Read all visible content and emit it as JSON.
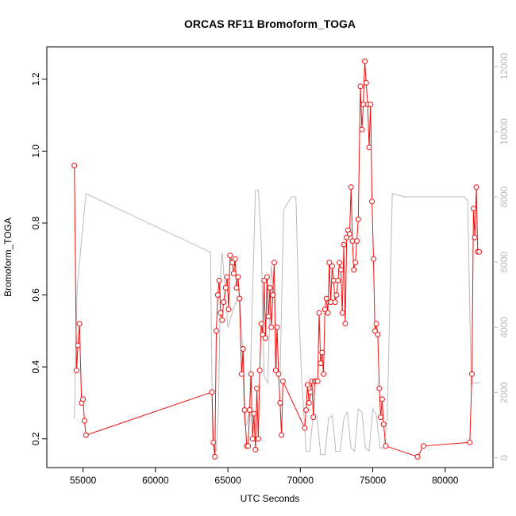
{
  "chart_data": {
    "type": "line",
    "title": "ORCAS RF11 Bromoform_TOGA",
    "xlabel": "UTC Seconds",
    "ylabel": "Bromoform_TOGA",
    "xlim": [
      52500,
      83300
    ],
    "ylim": [
      0.12,
      1.29
    ],
    "y2lim": [
      -300,
      12600
    ],
    "x_ticks": [
      55000,
      60000,
      65000,
      70000,
      75000,
      80000
    ],
    "y_ticks": [
      0.2,
      0.4,
      0.6,
      0.8,
      1.0,
      1.2
    ],
    "y_tick_labels": [
      "0.2",
      "0.4",
      "0.6",
      "0.8",
      "1.0",
      "1.2"
    ],
    "y2_ticks": [
      0,
      2000,
      4000,
      6000,
      8000,
      10000,
      12000
    ],
    "grid": false,
    "colors": {
      "bromoform": "#ee1111",
      "secondary": "#bbbbbb"
    },
    "series": [
      {
        "values": [
          [
            54400,
            0.96
          ],
          [
            54550,
            0.39
          ],
          [
            54650,
            0.46
          ],
          [
            54750,
            0.52
          ],
          [
            54900,
            0.3
          ],
          [
            55000,
            0.31
          ],
          [
            55100,
            0.25
          ],
          [
            55200,
            0.21
          ],
          [
            63900,
            0.33
          ],
          [
            64000,
            0.19
          ],
          [
            64100,
            0.15
          ],
          [
            64200,
            0.5
          ],
          [
            64300,
            0.6
          ],
          [
            64400,
            0.64
          ],
          [
            64500,
            0.55
          ],
          [
            64600,
            0.53
          ],
          [
            64700,
            0.58
          ],
          [
            64850,
            0.62
          ],
          [
            64950,
            0.65
          ],
          [
            65050,
            0.56
          ],
          [
            65150,
            0.71
          ],
          [
            65300,
            0.69
          ],
          [
            65400,
            0.66
          ],
          [
            65500,
            0.7
          ],
          [
            65600,
            0.62
          ],
          [
            65700,
            0.65
          ],
          [
            65800,
            0.59
          ],
          [
            65950,
            0.38
          ],
          [
            66050,
            0.45
          ],
          [
            66150,
            0.28
          ],
          [
            66300,
            0.18
          ],
          [
            66400,
            0.18
          ],
          [
            66500,
            0.28
          ],
          [
            66600,
            0.38
          ],
          [
            66700,
            0.2
          ],
          [
            66800,
            0.27
          ],
          [
            66900,
            0.17
          ],
          [
            67000,
            0.34
          ],
          [
            67100,
            0.2
          ],
          [
            67200,
            0.39
          ],
          [
            67300,
            0.52
          ],
          [
            67400,
            0.49
          ],
          [
            67500,
            0.64
          ],
          [
            67600,
            0.48
          ],
          [
            67700,
            0.65
          ],
          [
            67800,
            0.54
          ],
          [
            67900,
            0.62
          ],
          [
            68000,
            0.51
          ],
          [
            68100,
            0.6
          ],
          [
            68200,
            0.69
          ],
          [
            68300,
            0.39
          ],
          [
            68400,
            0.51
          ],
          [
            68500,
            0.38
          ],
          [
            68600,
            0.3
          ],
          [
            68700,
            0.21
          ],
          [
            68800,
            0.36
          ],
          [
            70300,
            0.23
          ],
          [
            70400,
            0.28
          ],
          [
            70500,
            0.35
          ],
          [
            70600,
            0.3
          ],
          [
            70700,
            0.33
          ],
          [
            70800,
            0.36
          ],
          [
            70900,
            0.26
          ],
          [
            71000,
            0.36
          ],
          [
            71100,
            0.36
          ],
          [
            71200,
            0.36
          ],
          [
            71300,
            0.55
          ],
          [
            71400,
            0.41
          ],
          [
            71500,
            0.44
          ],
          [
            71600,
            0.38
          ],
          [
            71700,
            0.56
          ],
          [
            71800,
            0.59
          ],
          [
            71900,
            0.55
          ],
          [
            72000,
            0.69
          ],
          [
            72100,
            0.58
          ],
          [
            72200,
            0.68
          ],
          [
            72300,
            0.64
          ],
          [
            72400,
            0.58
          ],
          [
            72500,
            0.6
          ],
          [
            72600,
            0.64
          ],
          [
            72700,
            0.69
          ],
          [
            72800,
            0.67
          ],
          [
            72900,
            0.55
          ],
          [
            73000,
            0.74
          ],
          [
            73100,
            0.52
          ],
          [
            73200,
            0.76
          ],
          [
            73300,
            0.78
          ],
          [
            73400,
            0.77
          ],
          [
            73500,
            0.9
          ],
          [
            73600,
            0.75
          ],
          [
            73700,
            0.67
          ],
          [
            73800,
            0.69
          ],
          [
            73900,
            0.75
          ],
          [
            74000,
            0.81
          ],
          [
            74150,
            1.18
          ],
          [
            74250,
            1.06
          ],
          [
            74350,
            1.13
          ],
          [
            74450,
            1.25
          ],
          [
            74550,
            1.19
          ],
          [
            74650,
            1.13
          ],
          [
            74750,
            1.01
          ],
          [
            74850,
            1.13
          ],
          [
            74950,
            0.86
          ],
          [
            75050,
            0.7
          ],
          [
            75150,
            0.5
          ],
          [
            75250,
            0.52
          ],
          [
            75350,
            0.49
          ],
          [
            75450,
            0.34
          ],
          [
            75550,
            0.26
          ],
          [
            75650,
            0.31
          ],
          [
            75750,
            0.24
          ],
          [
            75900,
            0.18
          ],
          [
            78100,
            0.15
          ],
          [
            78500,
            0.18
          ],
          [
            81700,
            0.19
          ],
          [
            81850,
            0.38
          ],
          [
            81950,
            0.84
          ],
          [
            82050,
            0.76
          ],
          [
            82150,
            0.9
          ],
          [
            82250,
            0.72
          ],
          [
            82350,
            0.72
          ]
        ]
      },
      {
        "values": [
          [
            54400,
            1200
          ],
          [
            54500,
            3500
          ],
          [
            54600,
            5200
          ],
          [
            54800,
            6200
          ],
          [
            55200,
            8100
          ],
          [
            63800,
            6300
          ],
          [
            63950,
            400
          ],
          [
            64200,
            200
          ],
          [
            64350,
            1500
          ],
          [
            64500,
            5700
          ],
          [
            64600,
            6300
          ],
          [
            64750,
            5500
          ],
          [
            65000,
            4000
          ],
          [
            65400,
            4600
          ],
          [
            65800,
            5000
          ],
          [
            66000,
            3500
          ],
          [
            66150,
            1000
          ],
          [
            66300,
            1000
          ],
          [
            66500,
            1500
          ],
          [
            66700,
            5000
          ],
          [
            66900,
            8200
          ],
          [
            67100,
            8200
          ],
          [
            67300,
            6600
          ],
          [
            67500,
            2500
          ],
          [
            67750,
            2300
          ],
          [
            68000,
            5900
          ],
          [
            68200,
            4900
          ],
          [
            68400,
            2500
          ],
          [
            68600,
            2500
          ],
          [
            68850,
            7600
          ],
          [
            69100,
            7800
          ],
          [
            69400,
            8000
          ],
          [
            69700,
            8000
          ],
          [
            69900,
            4400
          ],
          [
            70100,
            2400
          ],
          [
            70400,
            200
          ],
          [
            70650,
            200
          ],
          [
            70900,
            1400
          ],
          [
            71150,
            1300
          ],
          [
            71400,
            100
          ],
          [
            71700,
            100
          ],
          [
            71950,
            1200
          ],
          [
            72200,
            1300
          ],
          [
            72450,
            200
          ],
          [
            72750,
            200
          ],
          [
            73000,
            1200
          ],
          [
            73250,
            1400
          ],
          [
            73500,
            300
          ],
          [
            73750,
            200
          ],
          [
            74000,
            1500
          ],
          [
            74250,
            1400
          ],
          [
            74500,
            300
          ],
          [
            74750,
            200
          ],
          [
            75000,
            1500
          ],
          [
            75250,
            1300
          ],
          [
            75500,
            300
          ],
          [
            75750,
            300
          ],
          [
            76000,
            1200
          ],
          [
            76350,
            8100
          ],
          [
            77200,
            8000
          ],
          [
            78100,
            8000
          ],
          [
            81300,
            8000
          ],
          [
            81550,
            7900
          ],
          [
            81800,
            2200
          ],
          [
            81900,
            2300
          ],
          [
            82400,
            2300
          ]
        ]
      }
    ]
  }
}
